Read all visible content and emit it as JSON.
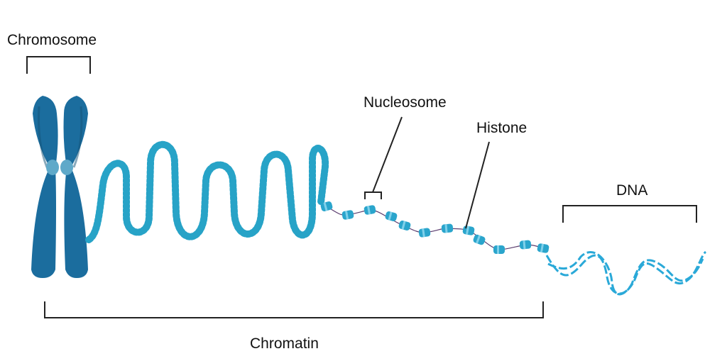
{
  "labels": {
    "chromosome": "Chromosome",
    "nucleosome": "Nucleosome",
    "histone": "Histone",
    "dna": "DNA",
    "chromatin": "Chromatin"
  },
  "colors": {
    "chromosome_fill": "#1b6d9e",
    "chromosome_dark": "#135478",
    "centromere": "#5fa9c9",
    "chromatin_bead": "#27a3c7",
    "histone_fill": "#2aa5cc",
    "histone_light": "#7fd0ea",
    "dna_strand": "#2aa9d8",
    "linker": "#5a3c6e",
    "bracket": "#222222"
  },
  "icons": {
    "chromosome": "x-chromosome-icon",
    "nucleosome": "histone-spool-icon"
  }
}
